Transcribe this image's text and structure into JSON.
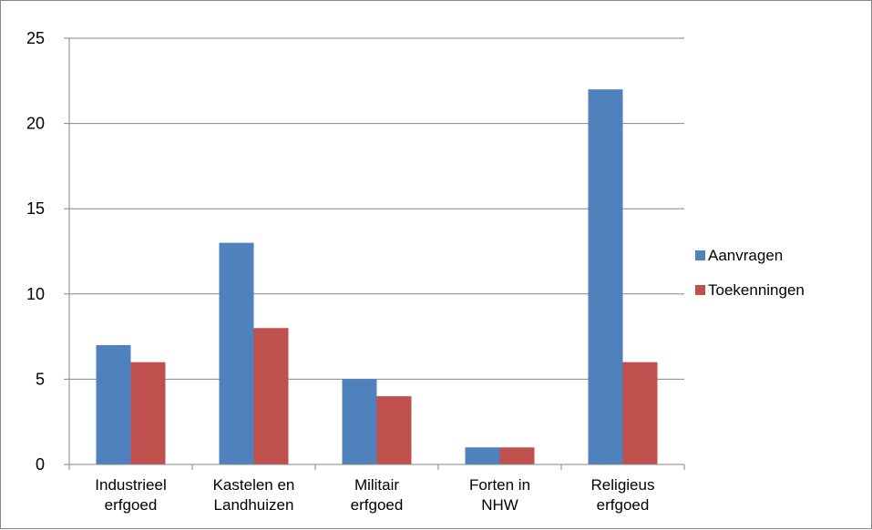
{
  "chart_data": {
    "type": "bar",
    "categories": [
      [
        "Industrieel",
        "erfgoed"
      ],
      [
        "Kastelen en",
        "Landhuizen"
      ],
      [
        "Militair",
        "erfgoed"
      ],
      [
        "Forten in",
        "NHW"
      ],
      [
        "Religieus",
        "erfgoed"
      ]
    ],
    "series": [
      {
        "name": "Aanvragen",
        "values": [
          7,
          13,
          5,
          1,
          22
        ],
        "color": "#4F81BD"
      },
      {
        "name": "Toekenningen",
        "values": [
          6,
          8,
          4,
          1,
          6
        ],
        "color": "#C0504D"
      }
    ],
    "ylim": [
      0,
      25
    ],
    "yticks": [
      0,
      5,
      10,
      15,
      20,
      25
    ],
    "grid": true,
    "legend_position": "right",
    "title": "",
    "xlabel": "",
    "ylabel": ""
  }
}
